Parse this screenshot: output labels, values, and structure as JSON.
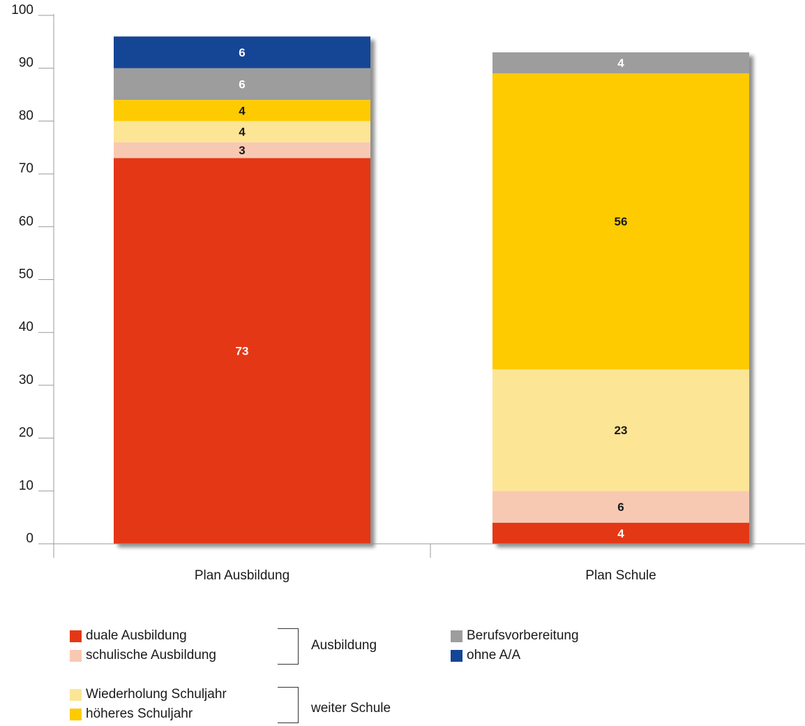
{
  "chart_data": {
    "type": "bar",
    "stacked": true,
    "categories": [
      "Plan Ausbildung",
      "Plan Schule"
    ],
    "ylim": [
      0,
      100
    ],
    "yticks": [
      "0",
      "10",
      "20",
      "30",
      "40",
      "50",
      "60",
      "70",
      "80",
      "90",
      "100"
    ],
    "series": [
      {
        "name": "duale Ausbildung",
        "color": "#e43716",
        "text_color": "#ffffff",
        "values": [
          73,
          4
        ],
        "labels": [
          "73",
          "4"
        ]
      },
      {
        "name": "schulische Ausbildung",
        "color": "#f8c9b2",
        "text_color": "#1a1a1a",
        "values": [
          3,
          6
        ],
        "labels": [
          "3",
          "6"
        ]
      },
      {
        "name": "Wiederholung Schuljahr",
        "color": "#fde596",
        "text_color": "#1a1a1a",
        "values": [
          4,
          23
        ],
        "labels": [
          "4",
          "23"
        ]
      },
      {
        "name": "höheres Schuljahr",
        "color": "#fecb00",
        "text_color": "#1a1a1a",
        "values": [
          4,
          56
        ],
        "labels": [
          "4",
          "56"
        ]
      },
      {
        "name": "Berufsvorbereitung",
        "color": "#9d9d9d",
        "text_color": "#ffffff",
        "values": [
          6,
          4
        ],
        "labels": [
          "6",
          "4"
        ]
      },
      {
        "name": "ohne A/A",
        "color": "#154595",
        "text_color": "#ffffff",
        "values": [
          6,
          0
        ],
        "labels": [
          "6",
          ""
        ]
      }
    ],
    "legend": {
      "groups": [
        {
          "label": "Ausbildung",
          "items": [
            "duale Ausbildung",
            "schulische Ausbildung"
          ]
        },
        {
          "label": "weiter Schule",
          "items": [
            "Wiederholung Schuljahr",
            "höheres Schuljahr"
          ]
        }
      ],
      "other": [
        "Berufsvorbereitung",
        "ohne A/A"
      ]
    }
  }
}
